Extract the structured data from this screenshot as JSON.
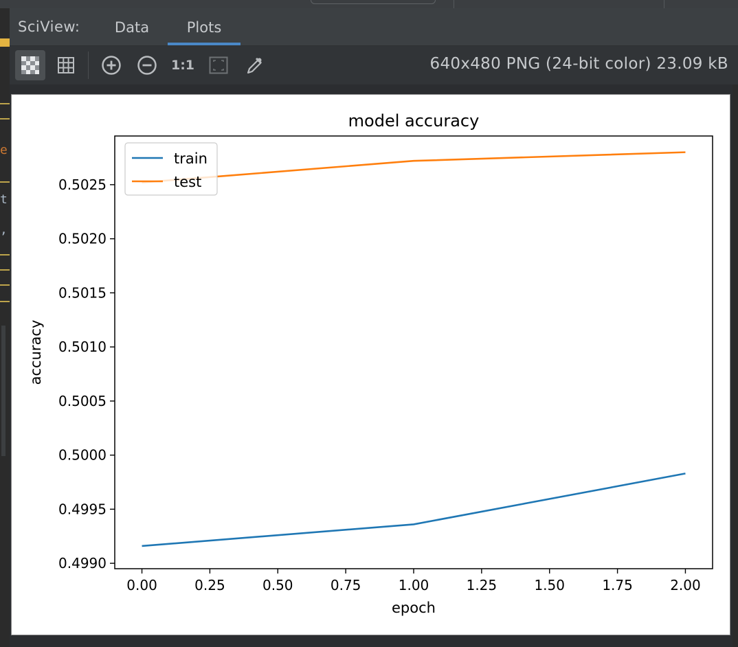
{
  "header": {
    "label": "SciView:",
    "tabs": [
      {
        "label": "Data",
        "active": false
      },
      {
        "label": "Plots",
        "active": true
      }
    ],
    "accent": "#4a88c7"
  },
  "toolbar": {
    "buttons": [
      {
        "icon": "chessboard-icon",
        "pressed": true
      },
      {
        "icon": "grid-icon",
        "pressed": false
      },
      {
        "icon": "zoom-in-icon",
        "pressed": false
      },
      {
        "icon": "zoom-out-icon",
        "pressed": false
      },
      {
        "icon": "actual-size-icon",
        "label": "1:1",
        "pressed": false
      },
      {
        "icon": "fit-frame-icon",
        "pressed": false
      },
      {
        "icon": "color-picker-icon",
        "pressed": false
      }
    ],
    "image_info": "640x480 PNG (24-bit color) 23.09 kB"
  },
  "chart_data": {
    "type": "line",
    "title": "model accuracy",
    "xlabel": "epoch",
    "ylabel": "accuracy",
    "x": [
      0,
      1,
      2
    ],
    "series": [
      {
        "name": "train",
        "color": "#1f77b4",
        "values": [
          0.49916,
          0.49936,
          0.49983
        ]
      },
      {
        "name": "test",
        "color": "#ff7f0e",
        "values": [
          0.50252,
          0.50272,
          0.5028
        ]
      }
    ],
    "xlim": [
      -0.1,
      2.1
    ],
    "ylim": [
      0.49895,
      0.50295
    ],
    "xticks": [
      "0.00",
      "0.25",
      "0.50",
      "0.75",
      "1.00",
      "1.25",
      "1.50",
      "1.75",
      "2.00"
    ],
    "xtick_values": [
      0,
      0.25,
      0.5,
      0.75,
      1.0,
      1.25,
      1.5,
      1.75,
      2.0
    ],
    "yticks": [
      "0.4990",
      "0.4995",
      "0.5000",
      "0.5005",
      "0.5010",
      "0.5015",
      "0.5020",
      "0.5025"
    ],
    "ytick_values": [
      0.499,
      0.4995,
      0.5,
      0.5005,
      0.501,
      0.5015,
      0.502,
      0.5025
    ],
    "legend": "upper-left",
    "grid": false
  },
  "gutter": {
    "fragments": [
      "e",
      "t",
      ","
    ]
  }
}
